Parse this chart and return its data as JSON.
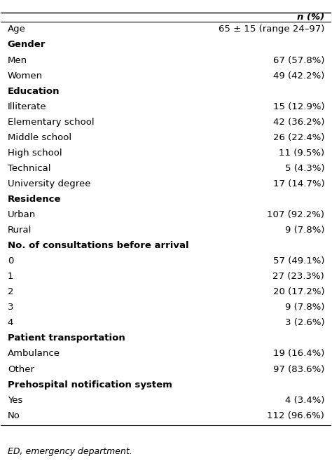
{
  "header": [
    "",
    "n (%)"
  ],
  "rows": [
    {
      "label": "Age",
      "value": "65 ± 15 (range 24–97)",
      "bold": false,
      "indent": false
    },
    {
      "label": "Gender",
      "value": "",
      "bold": true,
      "indent": false
    },
    {
      "label": "Men",
      "value": "67 (57.8%)",
      "bold": false,
      "indent": true
    },
    {
      "label": "Women",
      "value": "49 (42.2%)",
      "bold": false,
      "indent": true
    },
    {
      "label": "Education",
      "value": "",
      "bold": true,
      "indent": false
    },
    {
      "label": "Illiterate",
      "value": "15 (12.9%)",
      "bold": false,
      "indent": true
    },
    {
      "label": "Elementary school",
      "value": "42 (36.2%)",
      "bold": false,
      "indent": true
    },
    {
      "label": "Middle school",
      "value": "26 (22.4%)",
      "bold": false,
      "indent": true
    },
    {
      "label": "High school",
      "value": "11 (9.5%)",
      "bold": false,
      "indent": true
    },
    {
      "label": "Technical",
      "value": "5 (4.3%)",
      "bold": false,
      "indent": true
    },
    {
      "label": "University degree",
      "value": "17 (14.7%)",
      "bold": false,
      "indent": true
    },
    {
      "label": "Residence",
      "value": "",
      "bold": true,
      "indent": false
    },
    {
      "label": "Urban",
      "value": "107 (92.2%)",
      "bold": false,
      "indent": true
    },
    {
      "label": "Rural",
      "value": "9 (7.8%)",
      "bold": false,
      "indent": true
    },
    {
      "label": "No. of consultations before arrival",
      "value": "",
      "bold": true,
      "indent": false
    },
    {
      "label": "0",
      "value": "57 (49.1%)",
      "bold": false,
      "indent": true
    },
    {
      "label": "1",
      "value": "27 (23.3%)",
      "bold": false,
      "indent": true
    },
    {
      "label": "2",
      "value": "20 (17.2%)",
      "bold": false,
      "indent": true
    },
    {
      "label": "3",
      "value": "9 (7.8%)",
      "bold": false,
      "indent": true
    },
    {
      "label": "4",
      "value": "3 (2.6%)",
      "bold": false,
      "indent": true
    },
    {
      "label": "Patient transportation",
      "value": "",
      "bold": true,
      "indent": false
    },
    {
      "label": "Ambulance",
      "value": "19 (16.4%)",
      "bold": false,
      "indent": true
    },
    {
      "label": "Other",
      "value": "97 (83.6%)",
      "bold": false,
      "indent": true
    },
    {
      "label": "Prehospital notification system",
      "value": "",
      "bold": true,
      "indent": false
    },
    {
      "label": "Yes",
      "value": "4 (3.4%)",
      "bold": false,
      "indent": true
    },
    {
      "label": "No",
      "value": "112 (96.6%)",
      "bold": false,
      "indent": true
    }
  ],
  "footnote": "ED, emergency department.",
  "bg_color": "#ffffff",
  "text_color": "#000000",
  "line_color": "#000000",
  "header_italic": true,
  "font_size": 9.5,
  "header_font_size": 9.5
}
